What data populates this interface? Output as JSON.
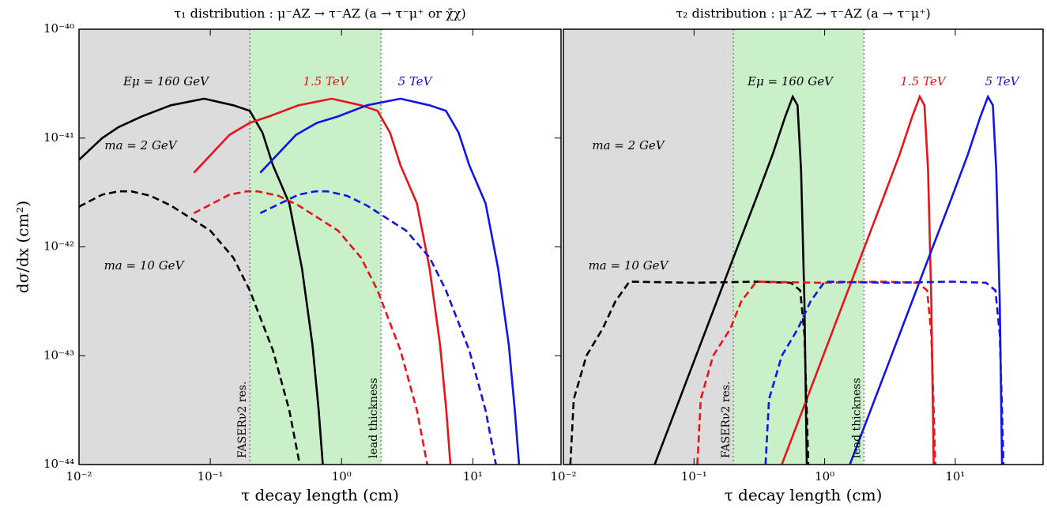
{
  "chart_data": [
    {
      "type": "line",
      "title": "τ₁ distribution : μ⁻AZ → τ⁻AZ (a → τ⁻μ⁺ or χ̄χ)",
      "x_label": "τ decay length (cm)",
      "y_label": "dσ/dx (cm²)",
      "log_x": true,
      "log_y": true,
      "xlim": [
        0.01,
        47
      ],
      "ylim": [
        1e-44,
        1e-40
      ],
      "xticks": [
        {
          "value": 0.01,
          "label": "10⁻²"
        },
        {
          "value": 0.1,
          "label": "10⁻¹"
        },
        {
          "value": 1,
          "label": "10⁰"
        },
        {
          "value": 10,
          "label": "10¹"
        }
      ],
      "yticks": [
        {
          "value": 1e-44,
          "label": "10⁻⁴⁴"
        },
        {
          "value": 1e-43,
          "label": "10⁻⁴³"
        },
        {
          "value": 1e-42,
          "label": "10⁻⁴²"
        },
        {
          "value": 1e-41,
          "label": "10⁻⁴¹"
        },
        {
          "value": 1e-40,
          "label": "10⁻⁴⁰"
        }
      ],
      "shaded": [
        {
          "x0": 0.01,
          "x1": 0.2,
          "color": "#dcdcdc"
        },
        {
          "x0": 0.2,
          "x1": 2,
          "color": "#c9f0c9"
        }
      ],
      "boundaries": [
        {
          "x": 0.2,
          "label": "FASERν2 res."
        },
        {
          "x": 2,
          "label": "lead thickness"
        }
      ],
      "annotations": [
        {
          "text": "Eμ = 160 GeV",
          "color": "#000000"
        },
        {
          "text": "1.5 TeV",
          "color": "#e8141c"
        },
        {
          "text": "5 TeV",
          "color": "#1414e6"
        },
        {
          "text": "ma = 2 GeV",
          "color": "#000000"
        },
        {
          "text": "ma = 10 GeV",
          "color": "#000000"
        }
      ],
      "series": [
        {
          "color": "#000000",
          "dash": false,
          "x": [
            0.01,
            0.015,
            0.02,
            0.03,
            0.05,
            0.09,
            0.15,
            0.2,
            0.25,
            0.3,
            0.4,
            0.5,
            0.6,
            0.67,
            0.72
          ],
          "values": [
            6.31e-42,
            1e-41,
            1.26e-41,
            1.58e-41,
            2e-41,
            2.3e-41,
            2e-41,
            1.78e-41,
            1.12e-41,
            5.62e-42,
            2.51e-42,
            6.31e-43,
            1.26e-43,
            3.16e-44,
            1e-44
          ]
        },
        {
          "color": "#e8141c",
          "dash": false,
          "x": [
            0.075,
            0.14,
            0.2,
            0.28,
            0.47,
            0.84,
            1.41,
            1.88,
            2.34,
            2.81,
            3.75,
            4.69,
            5.63,
            6.28,
            6.75
          ],
          "values": [
            4.8e-42,
            1.07e-41,
            1.38e-41,
            1.58e-41,
            2e-41,
            2.3e-41,
            2e-41,
            1.78e-41,
            1.12e-41,
            5.62e-42,
            2.51e-42,
            6.31e-43,
            1.26e-43,
            3.16e-44,
            1e-44
          ]
        },
        {
          "color": "#1414e6",
          "dash": false,
          "x": [
            0.24,
            0.45,
            0.65,
            0.94,
            1.56,
            2.81,
            4.69,
            6.25,
            7.8,
            9.4,
            12.5,
            15.6,
            18.8,
            20.9,
            22.5
          ],
          "values": [
            4.8e-42,
            1.07e-41,
            1.38e-41,
            1.58e-41,
            2e-41,
            2.3e-41,
            2e-41,
            1.78e-41,
            1.12e-41,
            5.62e-42,
            2.51e-42,
            6.31e-43,
            1.26e-43,
            3.16e-44,
            1e-44
          ]
        },
        {
          "color": "#000000",
          "dash": true,
          "x": [
            0.01,
            0.015,
            0.02,
            0.025,
            0.035,
            0.05,
            0.1,
            0.15,
            0.2,
            0.3,
            0.4,
            0.48
          ],
          "values": [
            2.34e-42,
            3.02e-42,
            3.24e-42,
            3.24e-42,
            2.95e-42,
            2.4e-42,
            1.41e-42,
            7.94e-43,
            3.98e-43,
            1.12e-43,
            3.16e-44,
            1e-44
          ]
        },
        {
          "color": "#e8141c",
          "dash": true,
          "x": [
            0.075,
            0.14,
            0.19,
            0.23,
            0.33,
            0.47,
            0.94,
            1.41,
            1.88,
            2.81,
            3.75,
            4.5
          ],
          "values": [
            2.04e-42,
            3.02e-42,
            3.24e-42,
            3.24e-42,
            2.95e-42,
            2.4e-42,
            1.41e-42,
            7.94e-43,
            3.98e-43,
            1.12e-43,
            3.16e-44,
            1e-44
          ]
        },
        {
          "color": "#1414e6",
          "dash": true,
          "x": [
            0.24,
            0.47,
            0.63,
            0.78,
            1.1,
            1.56,
            3.1,
            4.7,
            6.25,
            9.4,
            12.5,
            15
          ],
          "values": [
            2.04e-42,
            3.02e-42,
            3.24e-42,
            3.24e-42,
            2.95e-42,
            2.4e-42,
            1.41e-42,
            7.94e-43,
            3.98e-43,
            1.12e-43,
            3.16e-44,
            1e-44
          ]
        }
      ]
    },
    {
      "type": "line",
      "title": "τ₂ distribution : μ⁻AZ → τ⁻AZ (a → τ⁻μ⁺)",
      "x_label": "τ decay length (cm)",
      "log_x": true,
      "log_y": true,
      "xlim": [
        0.01,
        47
      ],
      "ylim": [
        1e-44,
        1e-40
      ],
      "xticks": [
        {
          "value": 0.01,
          "label": "10⁻²"
        },
        {
          "value": 0.1,
          "label": "10⁻¹"
        },
        {
          "value": 1,
          "label": "10⁰"
        },
        {
          "value": 10,
          "label": "10¹"
        }
      ],
      "shaded": [
        {
          "x0": 0.01,
          "x1": 0.2,
          "color": "#dcdcdc"
        },
        {
          "x0": 0.2,
          "x1": 2,
          "color": "#c9f0c9"
        }
      ],
      "boundaries": [
        {
          "x": 0.2,
          "label": "FASERν2 res."
        },
        {
          "x": 2,
          "label": "lead thickness"
        }
      ],
      "annotations": [
        {
          "text": "Eμ = 160 GeV",
          "color": "#000000"
        },
        {
          "text": "1.5 TeV",
          "color": "#e8141c"
        },
        {
          "text": "5 TeV",
          "color": "#1414e6"
        },
        {
          "text": "ma = 2 GeV",
          "color": "#000000"
        },
        {
          "text": "ma = 10 GeV",
          "color": "#000000"
        }
      ],
      "series": [
        {
          "color": "#000000",
          "dash": false,
          "x": [
            0.05,
            0.1,
            0.2,
            0.3,
            0.4,
            0.5,
            0.57,
            0.62,
            0.66,
            0.7,
            0.73
          ],
          "values": [
            1e-44,
            8.91e-44,
            7.94e-43,
            2.82e-42,
            7.08e-42,
            1.58e-41,
            2.4e-41,
            2e-41,
            5.01e-42,
            3.16e-43,
            1e-44
          ]
        },
        {
          "color": "#e8141c",
          "dash": false,
          "x": [
            0.47,
            0.94,
            1.88,
            2.81,
            3.75,
            4.69,
            5.34,
            5.81,
            6.19,
            6.56,
            6.84
          ],
          "values": [
            1e-44,
            8.91e-44,
            7.94e-43,
            2.82e-42,
            7.08e-42,
            1.58e-41,
            2.4e-41,
            2e-41,
            5.01e-42,
            3.16e-43,
            1e-44
          ]
        },
        {
          "color": "#1414e6",
          "dash": false,
          "x": [
            1.56,
            3.13,
            6.25,
            9.38,
            12.5,
            15.6,
            17.8,
            19.4,
            20.6,
            21.9,
            22.8
          ],
          "values": [
            1e-44,
            8.91e-44,
            7.94e-43,
            2.82e-42,
            7.08e-42,
            1.58e-41,
            2.4e-41,
            2e-41,
            5.01e-42,
            3.16e-43,
            1e-44
          ]
        },
        {
          "color": "#000000",
          "dash": true,
          "x": [
            0.0113,
            0.012,
            0.015,
            0.02,
            0.025,
            0.032,
            0.1,
            0.3,
            0.55,
            0.65,
            0.7,
            0.73,
            0.75
          ],
          "values": [
            1e-44,
            3.98e-44,
            1e-43,
            1.78e-43,
            3.16e-43,
            4.79e-43,
            4.68e-43,
            4.79e-43,
            4.68e-43,
            3.98e-43,
            1.58e-43,
            3.16e-44,
            1e-44
          ]
        },
        {
          "color": "#e8141c",
          "dash": true,
          "x": [
            0.106,
            0.1125,
            0.14,
            0.19,
            0.23,
            0.3,
            0.94,
            2.81,
            5.16,
            6.09,
            6.56,
            6.84,
            7.03
          ],
          "values": [
            1e-44,
            3.98e-44,
            1e-43,
            1.78e-43,
            3.16e-43,
            4.79e-43,
            4.68e-43,
            4.79e-43,
            4.68e-43,
            3.98e-43,
            1.58e-43,
            3.16e-44,
            1e-44
          ]
        },
        {
          "color": "#1414e6",
          "dash": true,
          "x": [
            0.353,
            0.375,
            0.47,
            0.625,
            0.78,
            1.0,
            3.13,
            9.38,
            17.2,
            20.3,
            21.9,
            22.8,
            23.4
          ],
          "values": [
            1e-44,
            3.98e-44,
            1e-43,
            1.78e-43,
            3.16e-43,
            4.79e-43,
            4.68e-43,
            4.79e-43,
            4.68e-43,
            3.98e-43,
            1.58e-43,
            3.16e-44,
            1e-44
          ]
        }
      ]
    }
  ]
}
